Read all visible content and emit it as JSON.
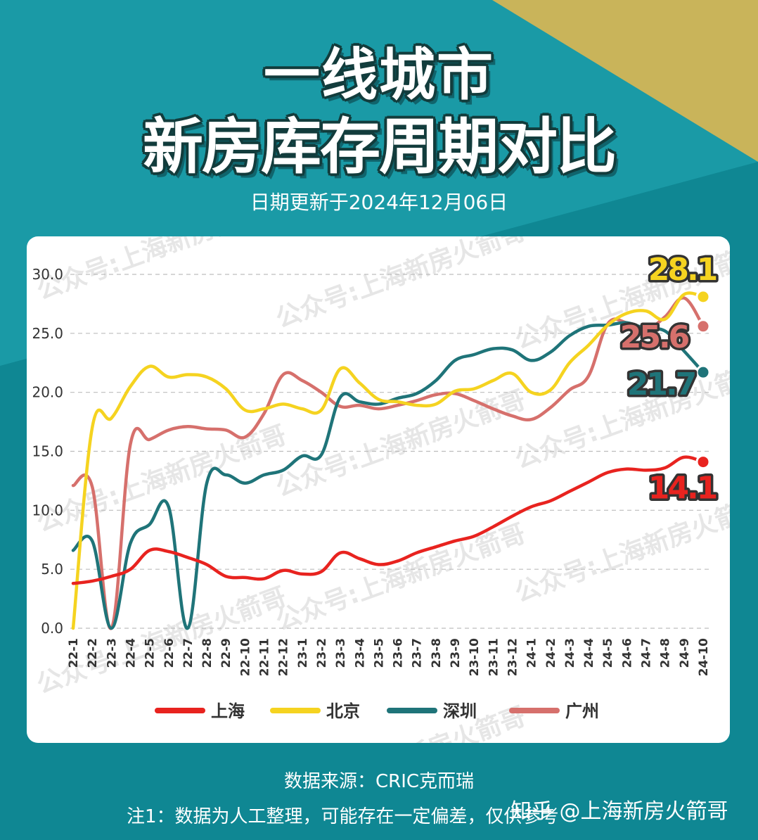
{
  "header": {
    "title_line1": "一线城市",
    "title_line2": "新房库存周期对比",
    "subtitle": "日期更新于2024年12月06日"
  },
  "footer": {
    "source": "数据来源：CRIC克而瑞",
    "note": "注1：数据为人工整理，可能存在一定偏差，仅供参考",
    "zhihu": "知乎 @上海新房火箭哥"
  },
  "watermark": "公众号:上海新房火箭哥",
  "colors": {
    "background": "#1a9aa6",
    "background_dark": "#0f8793",
    "accent_gold": "#c9b45a",
    "shanghai": "#e8231f",
    "beijing": "#f5d320",
    "shenzhen": "#1f7479",
    "guangzhou": "#d6706c"
  },
  "chart_data": {
    "type": "line",
    "categories": [
      "22-1",
      "22-2",
      "22-3",
      "22-4",
      "22-5",
      "22-6",
      "22-7",
      "22-8",
      "22-9",
      "22-10",
      "22-11",
      "22-12",
      "23-1",
      "23-2",
      "23-3",
      "23-4",
      "23-5",
      "23-6",
      "23-7",
      "23-8",
      "23-9",
      "23-10",
      "23-11",
      "23-12",
      "24-1",
      "24-2",
      "24-3",
      "24-4",
      "24-5",
      "24-6",
      "24-7",
      "24-8",
      "24-9",
      "24-10"
    ],
    "ylim": [
      0,
      30
    ],
    "yticks": [
      "0.0",
      "5.0",
      "10.0",
      "15.0",
      "20.0",
      "25.0",
      "30.0"
    ],
    "grid": "horizontal-dashed",
    "legend": "bottom",
    "series": [
      {
        "name": "上海",
        "color": "#e8231f",
        "values": [
          3.8,
          4.0,
          4.4,
          5.0,
          6.6,
          6.5,
          6.0,
          5.4,
          4.4,
          4.3,
          4.2,
          4.9,
          4.6,
          4.8,
          6.4,
          5.9,
          5.4,
          5.7,
          6.4,
          6.9,
          7.4,
          7.8,
          8.6,
          9.5,
          10.3,
          10.8,
          11.6,
          12.4,
          13.2,
          13.5,
          13.4,
          13.6,
          14.5,
          14.1
        ],
        "end_label": "14.1"
      },
      {
        "name": "北京",
        "color": "#f5d320",
        "values": [
          0.0,
          17.0,
          17.8,
          20.5,
          22.2,
          21.3,
          21.5,
          21.3,
          20.3,
          18.5,
          18.6,
          19.0,
          18.6,
          18.5,
          22.0,
          20.8,
          19.4,
          19.2,
          18.9,
          19.0,
          20.1,
          20.3,
          21.0,
          21.6,
          20.0,
          20.2,
          22.5,
          24.0,
          25.7,
          26.7,
          26.9,
          26.2,
          28.3,
          28.1
        ],
        "end_label": "28.1"
      },
      {
        "name": "深圳",
        "color": "#1f7479",
        "values": [
          6.6,
          7.4,
          0.0,
          7.2,
          8.8,
          10.3,
          0.0,
          12.3,
          13.0,
          12.3,
          13.0,
          13.4,
          14.6,
          14.7,
          19.6,
          19.2,
          19.0,
          19.5,
          19.9,
          21.0,
          22.7,
          23.2,
          23.7,
          23.6,
          22.7,
          23.4,
          24.8,
          25.6,
          25.7,
          25.9,
          25.4,
          25.2,
          23.5,
          21.7
        ],
        "end_label": "21.7"
      },
      {
        "name": "广州",
        "color": "#d6706c",
        "values": [
          12.1,
          12.0,
          0.0,
          15.6,
          16.0,
          16.8,
          17.1,
          16.9,
          16.8,
          16.2,
          18.2,
          21.5,
          21.0,
          20.0,
          18.8,
          18.9,
          18.6,
          18.9,
          19.3,
          19.8,
          19.9,
          19.3,
          18.6,
          18.0,
          17.7,
          18.7,
          20.2,
          21.4,
          25.8,
          25.9,
          25.3,
          26.4,
          28.0,
          25.6
        ],
        "end_label": "25.6"
      }
    ]
  }
}
